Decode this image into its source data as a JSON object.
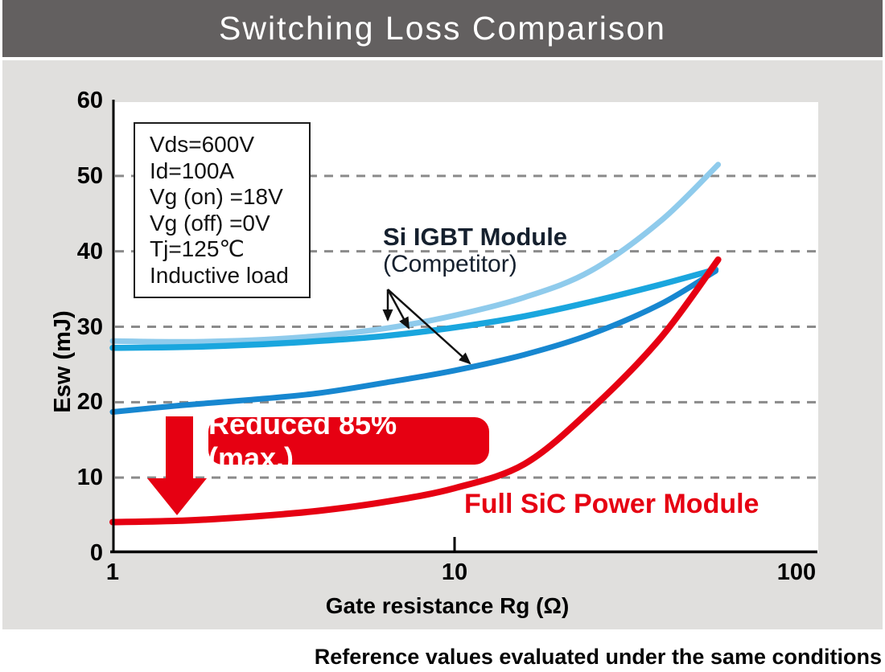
{
  "header": {
    "title": "Switching Loss Comparison"
  },
  "conditions": {
    "lines": [
      "Vds=600V",
      "Id=100A",
      "Vg (on) =18V",
      "Vg (off) =0V",
      "Tj=125℃",
      "Inductive load"
    ]
  },
  "annotations": {
    "competitor_label_line1": "Si IGBT Module",
    "competitor_label_line2": "(Competitor)",
    "reduction_badge": "Reduced 85% (max.)",
    "sic_label": "Full SiC Power Module",
    "footnote": "Reference values evaluated under the same conditions"
  },
  "colors": {
    "title_bar_bg": "#636060",
    "panel_bg": "#E0DFDD",
    "accent_red": "#E60012",
    "gridline_gray": "#8B8B8B",
    "competitor_text": "#15202E",
    "si_light_blue": "#8FCBEC",
    "si_mid_blue": "#1AA6DE",
    "si_dark_blue": "#1787D0"
  },
  "chart_data": {
    "type": "line",
    "title": "Switching Loss Comparison",
    "xlabel": "Gate resistance Rg (Ω)",
    "ylabel": "Esw (mJ)",
    "x_scale": "log",
    "xlim": [
      1,
      100
    ],
    "ylim": [
      0,
      60
    ],
    "x_ticks": [
      {
        "value": 1,
        "label": "1"
      },
      {
        "value": 10,
        "label": "10"
      },
      {
        "value": 100,
        "label": "100"
      }
    ],
    "y_ticks": [
      {
        "value": 60,
        "label": "60"
      },
      {
        "value": 50,
        "label": "50"
      },
      {
        "value": 40,
        "label": "40"
      },
      {
        "value": 30,
        "label": "30"
      },
      {
        "value": 20,
        "label": "20"
      },
      {
        "value": 10,
        "label": "10"
      },
      {
        "value": 0,
        "label": "0"
      }
    ],
    "gridline_values": [
      10,
      20,
      30,
      40,
      50
    ],
    "grid": "dashed horizontal",
    "legend_position": "inline annotations",
    "series": [
      {
        "id": "si-igbt-a",
        "name": "Si IGBT Module (Competitor) curve A",
        "color": "#8FCBEC",
        "width": 7,
        "points": [
          [
            1,
            28.1
          ],
          [
            1.6,
            28.0
          ],
          [
            2.5,
            28.2
          ],
          [
            4,
            28.8
          ],
          [
            6.3,
            29.8
          ],
          [
            10,
            31.5
          ],
          [
            16,
            33.9
          ],
          [
            25,
            37.4
          ],
          [
            40,
            44.0
          ],
          [
            59,
            51.5
          ]
        ]
      },
      {
        "id": "si-igbt-b",
        "name": "Si IGBT Module (Competitor) curve B",
        "color": "#1AA6DE",
        "width": 7.5,
        "points": [
          [
            1,
            27.2
          ],
          [
            1.6,
            27.3
          ],
          [
            2.5,
            27.6
          ],
          [
            4,
            28.1
          ],
          [
            6.3,
            28.8
          ],
          [
            10,
            29.9
          ],
          [
            16,
            31.4
          ],
          [
            25,
            33.3
          ],
          [
            40,
            35.6
          ],
          [
            58,
            37.6
          ]
        ]
      },
      {
        "id": "si-igbt-c",
        "name": "Si IGBT Module (Competitor) curve C",
        "color": "#1787D0",
        "width": 7,
        "points": [
          [
            1,
            18.7
          ],
          [
            1.6,
            19.6
          ],
          [
            2.5,
            20.3
          ],
          [
            4,
            21.2
          ],
          [
            6.3,
            22.6
          ],
          [
            10,
            24.2
          ],
          [
            16,
            26.3
          ],
          [
            25,
            29.0
          ],
          [
            40,
            33.0
          ],
          [
            58,
            37.4
          ]
        ]
      },
      {
        "id": "full-sic",
        "name": "Full SiC Power Module",
        "color": "#E60012",
        "width": 8,
        "points": [
          [
            1,
            4.1
          ],
          [
            1.6,
            4.3
          ],
          [
            2.5,
            4.8
          ],
          [
            4,
            5.6
          ],
          [
            6.3,
            6.8
          ],
          [
            10,
            8.6
          ],
          [
            16,
            11.8
          ],
          [
            25,
            19.0
          ],
          [
            40,
            28.5
          ],
          [
            59,
            38.9
          ]
        ]
      }
    ],
    "reduction_note": "Reduced 85% (max.)"
  }
}
